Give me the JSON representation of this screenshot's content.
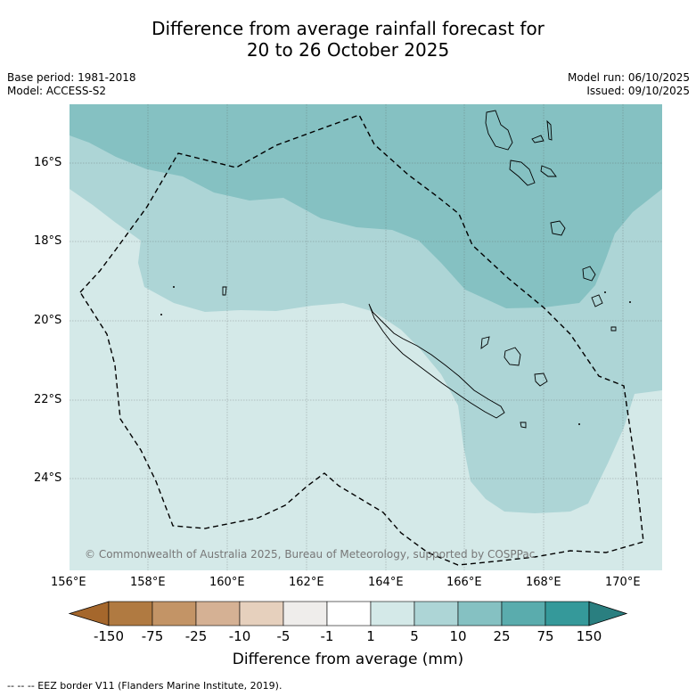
{
  "title_line1": "Difference from average rainfall forecast for",
  "title_line2": "20 to 26 October 2025",
  "base_period": "Base period: 1981-2018",
  "model": "Model: ACCESS-S2",
  "model_run": "Model run: 06/10/2025",
  "issued": "Issued: 09/10/2025",
  "copyright": "© Commonwealth of Australia 2025, Bureau of Meteorology, supported by COSPPac",
  "lon_labels": [
    "156°E",
    "158°E",
    "160°E",
    "162°E",
    "164°E",
    "166°E",
    "168°E",
    "170°E"
  ],
  "lat_labels": [
    "16°S",
    "18°S",
    "20°S",
    "22°S",
    "24°S"
  ],
  "colorbar": {
    "title": "Difference from average (mm)",
    "ticks": [
      "-150",
      "-75",
      "-25",
      "-10",
      "-5",
      "-1",
      "1",
      "5",
      "10",
      "25",
      "75",
      "150"
    ],
    "colors": [
      "#a5672c",
      "#b07a41",
      "#c39466",
      "#d5b194",
      "#e6d0bd",
      "#efedeb",
      "#ffffff",
      "#d4e9e8",
      "#add5d6",
      "#85c1c2",
      "#5aacad",
      "#35999a",
      "#2a7f80"
    ]
  },
  "legend_note": "--  --  -- EEZ border V11 (Flanders Marine Institute, 2019).",
  "map_colors": {
    "band_1_5": "#d4e9e8",
    "band_5_10": "#add5d6",
    "band_10_25": "#85c1c2",
    "coast": "#000000"
  }
}
